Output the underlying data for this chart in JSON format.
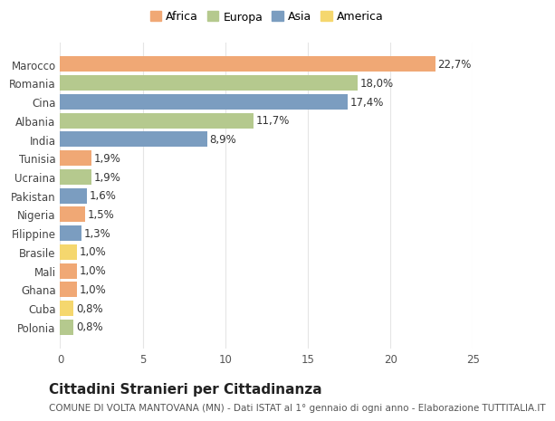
{
  "countries": [
    "Marocco",
    "Romania",
    "Cina",
    "Albania",
    "India",
    "Tunisia",
    "Ucraina",
    "Pakistan",
    "Nigeria",
    "Filippine",
    "Brasile",
    "Mali",
    "Ghana",
    "Cuba",
    "Polonia"
  ],
  "values": [
    22.7,
    18.0,
    17.4,
    11.7,
    8.9,
    1.9,
    1.9,
    1.6,
    1.5,
    1.3,
    1.0,
    1.0,
    1.0,
    0.8,
    0.8
  ],
  "labels": [
    "22,7%",
    "18,0%",
    "17,4%",
    "11,7%",
    "8,9%",
    "1,9%",
    "1,9%",
    "1,6%",
    "1,5%",
    "1,3%",
    "1,0%",
    "1,0%",
    "1,0%",
    "0,8%",
    "0,8%"
  ],
  "colors": [
    "#F0A875",
    "#B5C98E",
    "#7B9DC0",
    "#B5C98E",
    "#7B9DC0",
    "#F0A875",
    "#B5C98E",
    "#7B9DC0",
    "#F0A875",
    "#7B9DC0",
    "#F5D76E",
    "#F0A875",
    "#F0A875",
    "#F5D76E",
    "#B5C98E"
  ],
  "legend_labels": [
    "Africa",
    "Europa",
    "Asia",
    "America"
  ],
  "legend_colors": [
    "#F0A875",
    "#B5C98E",
    "#7B9DC0",
    "#F5D76E"
  ],
  "title": "Cittadini Stranieri per Cittadinanza",
  "subtitle": "COMUNE DI VOLTA MANTOVANA (MN) - Dati ISTAT al 1° gennaio di ogni anno - Elaborazione TUTTITALIA.IT",
  "xlim": [
    0,
    25
  ],
  "xticks": [
    0,
    5,
    10,
    15,
    20,
    25
  ],
  "background_color": "#ffffff",
  "grid_color": "#e5e5e5",
  "bar_height": 0.82,
  "label_fontsize": 8.5,
  "tick_fontsize": 8.5,
  "title_fontsize": 11,
  "subtitle_fontsize": 7.5
}
